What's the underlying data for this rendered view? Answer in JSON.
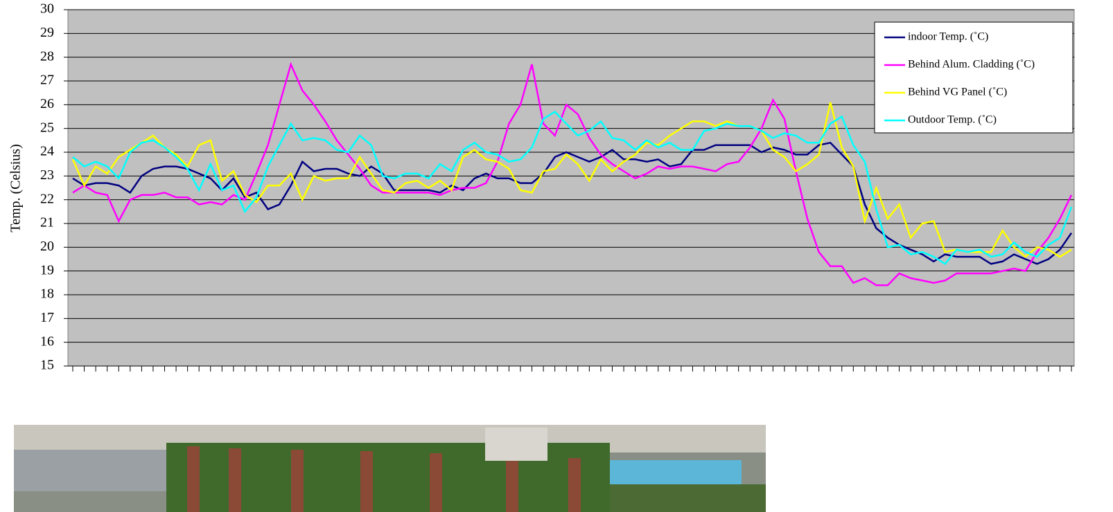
{
  "chart_data": {
    "type": "line",
    "y_label": "Temp. (Celsius)",
    "categories": [
      null,
      null,
      null,
      null,
      null,
      null,
      null,
      null,
      null,
      null,
      null,
      null,
      null,
      null,
      null,
      null,
      null,
      null,
      null,
      null,
      null,
      null,
      null,
      null,
      null,
      null,
      null,
      null,
      null,
      null,
      null,
      null,
      null,
      null,
      null,
      null,
      null,
      null,
      null,
      null,
      null,
      null,
      null,
      null,
      null,
      null,
      null,
      null,
      null,
      null,
      null,
      null,
      null,
      null,
      null,
      null,
      null,
      null,
      null,
      null,
      null,
      null,
      null,
      null,
      null,
      null,
      null,
      null,
      null,
      null,
      null,
      null,
      null,
      null,
      null,
      null,
      null,
      null,
      null,
      null,
      null,
      null,
      null,
      null,
      null,
      null,
      null,
      null
    ],
    "series": [
      {
        "name": "indoor Temp. (˚C)",
        "color": "#000080",
        "values": [
          22.9,
          22.6,
          22.7,
          22.7,
          22.6,
          22.3,
          23.0,
          23.3,
          23.4,
          23.4,
          23.3,
          23.1,
          22.9,
          22.4,
          22.9,
          22.1,
          22.3,
          21.6,
          21.8,
          22.6,
          23.6,
          23.2,
          23.3,
          23.3,
          23.1,
          23.0,
          23.4,
          23.1,
          22.4,
          22.4,
          22.4,
          22.4,
          22.3,
          22.6,
          22.4,
          22.9,
          23.1,
          22.9,
          22.9,
          22.7,
          22.7,
          23.1,
          23.8,
          24.0,
          23.8,
          23.6,
          23.8,
          24.1,
          23.7,
          23.7,
          23.6,
          23.7,
          23.4,
          23.5,
          24.1,
          24.1,
          24.3,
          24.3,
          24.3,
          24.3,
          24.0,
          24.2,
          24.1,
          23.9,
          23.9,
          24.3,
          24.4,
          23.9,
          23.4,
          21.8,
          20.8,
          20.4,
          20.1,
          19.9,
          19.7,
          19.4,
          19.7,
          19.6,
          19.6,
          19.6,
          19.3,
          19.4,
          19.7,
          19.5,
          19.3,
          19.5,
          19.9,
          20.6
        ]
      },
      {
        "name": "Behind Alum. Cladding (˚C)",
        "color": "#ff00ff",
        "values": [
          22.3,
          22.6,
          22.3,
          22.2,
          21.1,
          22.0,
          22.2,
          22.2,
          22.3,
          22.1,
          22.1,
          21.8,
          21.9,
          21.8,
          22.2,
          22.0,
          23.1,
          24.3,
          26.0,
          27.7,
          26.6,
          26.0,
          25.3,
          24.5,
          23.9,
          23.3,
          22.6,
          22.3,
          22.3,
          22.3,
          22.3,
          22.3,
          22.2,
          22.4,
          22.5,
          22.5,
          22.7,
          23.6,
          25.2,
          26.0,
          27.7,
          25.2,
          24.7,
          26.0,
          25.6,
          24.6,
          23.9,
          23.5,
          23.2,
          22.9,
          23.1,
          23.4,
          23.3,
          23.4,
          23.4,
          23.3,
          23.2,
          23.5,
          23.6,
          24.2,
          25.0,
          26.2,
          25.4,
          23.2,
          21.2,
          19.8,
          19.2,
          19.2,
          18.5,
          18.7,
          18.4,
          18.4,
          18.9,
          18.7,
          18.6,
          18.5,
          18.6,
          18.9,
          18.9,
          18.9,
          18.9,
          19.0,
          19.1,
          19.0,
          19.8,
          20.4,
          21.2,
          22.2
        ]
      },
      {
        "name": "Behind VG Panel (˚C)",
        "color": "#ffff00",
        "values": [
          23.7,
          22.6,
          23.4,
          23.1,
          23.8,
          24.1,
          24.4,
          24.7,
          24.2,
          23.9,
          23.4,
          24.3,
          24.5,
          22.8,
          23.2,
          22.2,
          21.9,
          22.6,
          22.6,
          23.1,
          22.0,
          23.0,
          22.8,
          22.9,
          22.9,
          23.8,
          23.1,
          22.4,
          22.3,
          22.7,
          22.8,
          22.5,
          22.8,
          22.4,
          23.8,
          24.1,
          23.7,
          23.6,
          23.3,
          22.4,
          22.3,
          23.2,
          23.3,
          23.9,
          23.5,
          22.8,
          23.7,
          23.2,
          23.6,
          23.9,
          24.4,
          24.3,
          24.7,
          25.0,
          25.3,
          25.3,
          25.1,
          25.3,
          25.1,
          25.1,
          24.9,
          24.1,
          23.8,
          23.2,
          23.5,
          23.9,
          26.1,
          24.2,
          23.4,
          21.1,
          22.5,
          21.2,
          21.8,
          20.4,
          21.0,
          21.1,
          19.8,
          19.9,
          19.8,
          19.8,
          19.8,
          20.7,
          20.0,
          19.6,
          20.0,
          19.9,
          19.6,
          19.9
        ]
      },
      {
        "name": "Outdoor Temp. (˚C)",
        "color": "#00ffff",
        "values": [
          23.8,
          23.4,
          23.6,
          23.4,
          22.9,
          24.0,
          24.4,
          24.5,
          24.2,
          23.8,
          23.3,
          22.4,
          23.5,
          22.4,
          22.6,
          21.5,
          22.1,
          23.4,
          24.3,
          25.2,
          24.5,
          24.6,
          24.5,
          24.1,
          24.0,
          24.7,
          24.3,
          23.0,
          22.9,
          23.1,
          23.1,
          22.9,
          23.5,
          23.2,
          24.1,
          24.4,
          24.0,
          23.9,
          23.6,
          23.7,
          24.2,
          25.4,
          25.7,
          25.2,
          24.7,
          24.9,
          25.3,
          24.6,
          24.5,
          24.1,
          24.5,
          24.2,
          24.4,
          24.1,
          24.1,
          24.9,
          25.0,
          25.2,
          25.1,
          25.1,
          24.9,
          24.6,
          24.8,
          24.7,
          24.4,
          24.4,
          25.2,
          25.5,
          24.3,
          23.6,
          21.6,
          20.0,
          20.1,
          19.7,
          19.8,
          19.6,
          19.3,
          19.9,
          19.8,
          19.9,
          19.6,
          19.7,
          20.2,
          19.8,
          19.6,
          20.1,
          20.4,
          21.7
        ]
      }
    ],
    "ylim": [
      15,
      30
    ],
    "yticks": [
      15,
      16,
      17,
      18,
      19,
      20,
      21,
      22,
      23,
      24,
      25,
      26,
      27,
      28,
      29,
      30
    ],
    "grid": true,
    "legend": "upper right"
  }
}
